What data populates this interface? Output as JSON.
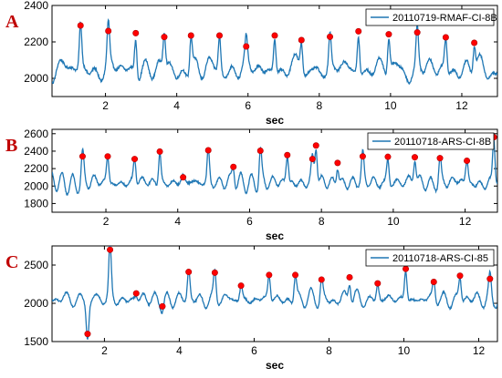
{
  "colors": {
    "line": "#1f77b4",
    "peak": "#ff0000",
    "panel_label": "#c00000",
    "axis": "#000000",
    "grid": "#e6e6e6"
  },
  "chart_data": [
    {
      "type": "line",
      "panel_label": "A",
      "xlabel": "sec",
      "ylabel": "",
      "legend": "top-right",
      "grid": false,
      "xlim": [
        0.5,
        13
      ],
      "ylim": [
        1900,
        2400
      ],
      "x_ticks": [
        2,
        4,
        6,
        8,
        10,
        12
      ],
      "x_tick_labels": [
        "2",
        "4",
        "6",
        "8",
        "10",
        "12"
      ],
      "y_ticks": [
        2000,
        2200,
        2400
      ],
      "y_tick_labels": [
        "2000",
        "2200",
        "2400"
      ],
      "series": [
        {
          "name": "20110719-RMAF-CI-8B",
          "base": 2050,
          "noise": 35,
          "pulse_width": 0.06,
          "peaks": [
            {
              "x": 1.3,
              "y": 2290
            },
            {
              "x": 2.08,
              "y": 2260
            },
            {
              "x": 2.85,
              "y": 2248
            },
            {
              "x": 3.65,
              "y": 2227
            },
            {
              "x": 4.4,
              "y": 2235
            },
            {
              "x": 5.2,
              "y": 2235
            },
            {
              "x": 5.95,
              "y": 2175
            },
            {
              "x": 6.75,
              "y": 2235
            },
            {
              "x": 7.5,
              "y": 2210
            },
            {
              "x": 8.3,
              "y": 2228
            },
            {
              "x": 9.1,
              "y": 2258
            },
            {
              "x": 9.95,
              "y": 2242
            },
            {
              "x": 10.75,
              "y": 2252
            },
            {
              "x": 11.55,
              "y": 2225
            },
            {
              "x": 12.35,
              "y": 2195
            }
          ]
        }
      ]
    },
    {
      "type": "line",
      "panel_label": "B",
      "xlabel": "sec",
      "ylabel": "",
      "legend": "top-right",
      "grid": false,
      "xlim": [
        0.5,
        12.9
      ],
      "ylim": [
        1700,
        2650
      ],
      "x_ticks": [
        2,
        4,
        6,
        8,
        10,
        12
      ],
      "x_tick_labels": [
        "2",
        "4",
        "6",
        "8",
        "10",
        "12"
      ],
      "y_ticks": [
        1800,
        2000,
        2200,
        2400,
        2600
      ],
      "y_tick_labels": [
        "1800",
        "2000",
        "2200",
        "2400",
        "2600"
      ],
      "series": [
        {
          "name": "20110718-ARS-CI-8B",
          "base": 2040,
          "noise": 55,
          "pulse_width": 0.06,
          "peaks": [
            {
              "x": 1.35,
              "y": 2340
            },
            {
              "x": 2.05,
              "y": 2340
            },
            {
              "x": 2.8,
              "y": 2310
            },
            {
              "x": 3.5,
              "y": 2395
            },
            {
              "x": 4.15,
              "y": 2100
            },
            {
              "x": 4.85,
              "y": 2410
            },
            {
              "x": 5.55,
              "y": 2220
            },
            {
              "x": 6.3,
              "y": 2405
            },
            {
              "x": 7.05,
              "y": 2355
            },
            {
              "x": 7.75,
              "y": 2310
            },
            {
              "x": 7.85,
              "y": 2465
            },
            {
              "x": 8.45,
              "y": 2265
            },
            {
              "x": 9.15,
              "y": 2340
            },
            {
              "x": 9.85,
              "y": 2335
            },
            {
              "x": 10.6,
              "y": 2330
            },
            {
              "x": 11.3,
              "y": 2320
            },
            {
              "x": 12.05,
              "y": 2290
            },
            {
              "x": 12.8,
              "y": 2560
            }
          ]
        }
      ]
    },
    {
      "type": "line",
      "panel_label": "C",
      "xlabel": "sec",
      "ylabel": "",
      "legend": "top-right",
      "grid": false,
      "xlim": [
        0.6,
        12.5
      ],
      "ylim": [
        1500,
        2750
      ],
      "x_ticks": [
        2,
        4,
        6,
        8,
        10,
        12
      ],
      "x_tick_labels": [
        "2",
        "4",
        "6",
        "8",
        "10",
        "12"
      ],
      "y_ticks": [
        1500,
        2000,
        2500
      ],
      "y_tick_labels": [
        "1500",
        "2000",
        "2500"
      ],
      "series": [
        {
          "name": "20110718-ARS-CI-85",
          "base": 2050,
          "noise": 60,
          "pulse_width": 0.06,
          "peaks": [
            {
              "x": 1.55,
              "y": 1600
            },
            {
              "x": 2.15,
              "y": 2700
            },
            {
              "x": 2.85,
              "y": 2130
            },
            {
              "x": 3.55,
              "y": 1960
            },
            {
              "x": 4.25,
              "y": 2410
            },
            {
              "x": 4.95,
              "y": 2400
            },
            {
              "x": 5.65,
              "y": 2230
            },
            {
              "x": 6.4,
              "y": 2370
            },
            {
              "x": 7.1,
              "y": 2370
            },
            {
              "x": 7.8,
              "y": 2310
            },
            {
              "x": 8.55,
              "y": 2340
            },
            {
              "x": 9.3,
              "y": 2260
            },
            {
              "x": 10.05,
              "y": 2450
            },
            {
              "x": 10.8,
              "y": 2280
            },
            {
              "x": 11.5,
              "y": 2360
            },
            {
              "x": 12.3,
              "y": 2320
            }
          ]
        }
      ]
    }
  ]
}
